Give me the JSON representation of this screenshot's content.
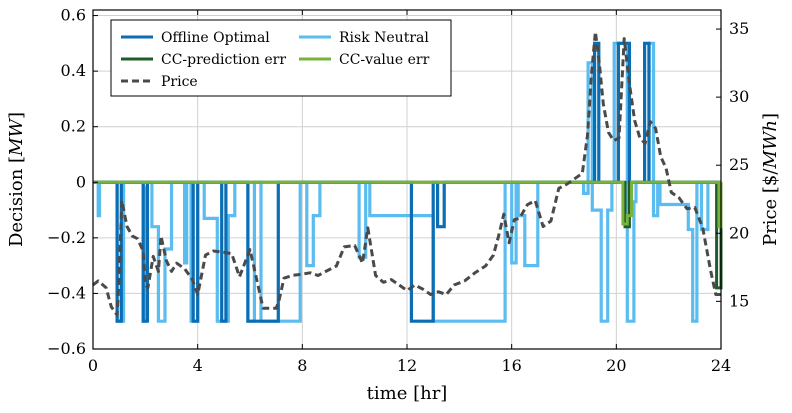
{
  "chart_data": {
    "type": "line",
    "xlabel": "time [hr]",
    "ylabel": "Decision [MW]",
    "y2label": "Price [$/MWh]",
    "xlim": [
      0,
      24
    ],
    "ylim": [
      -0.6,
      0.62
    ],
    "y2lim": [
      11.5,
      36.4
    ],
    "grid": true,
    "legend_position": "top-left",
    "x_ticks": [
      0,
      4,
      8,
      12,
      16,
      20,
      24
    ],
    "x_tick_labels": [
      "0",
      "4",
      "8",
      "12",
      "16",
      "20",
      "24"
    ],
    "y_ticks": [
      -0.6,
      -0.4,
      -0.2,
      0,
      0.2,
      0.4,
      0.6
    ],
    "y_tick_labels": [
      "−0.6",
      "−0.4",
      "−0.2",
      "0",
      "0.2",
      "0.4",
      "0.6"
    ],
    "y2_ticks": [
      15,
      20,
      25,
      30,
      35
    ],
    "y2_tick_labels": [
      "15",
      "20",
      "25",
      "30",
      "35"
    ],
    "series": [
      {
        "name": "Risk Neutral",
        "color": "#5bbcf0",
        "axis": "left",
        "style": "step",
        "x": [
          0,
          0.2,
          0.25,
          0.92,
          1.17,
          1.92,
          2.0,
          2.08,
          2.25,
          2.5,
          2.75,
          3.0,
          3.5,
          3.58,
          3.75,
          4.0,
          4.25,
          4.75,
          5.17,
          5.42,
          5.92,
          6.17,
          6.42,
          7.92,
          8.17,
          8.42,
          8.67,
          10.17,
          10.42,
          10.58,
          13.0,
          15.75,
          16.0,
          16.17,
          16.25,
          16.5,
          16.75,
          17.0,
          18.75,
          18.92,
          19.08,
          19.42,
          19.67,
          19.83,
          19.92,
          20.42,
          20.67,
          20.75,
          21.25,
          21.42,
          21.58,
          21.67,
          22.75,
          22.92,
          23.08,
          23.25,
          23.5,
          24
        ],
        "values": [
          0,
          -0.12,
          0,
          -0.5,
          0,
          -0.5,
          -0.02,
          0,
          -0.16,
          -0.5,
          -0.24,
          0,
          -0.29,
          0,
          -0.5,
          0,
          -0.13,
          -0.5,
          -0.12,
          0,
          -0.5,
          0,
          -0.5,
          0,
          -0.3,
          -0.12,
          0,
          -0.27,
          0,
          -0.12,
          -0.5,
          0,
          -0.29,
          0,
          -0.12,
          -0.3,
          -0.3,
          0,
          -0.04,
          0.43,
          -0.1,
          -0.5,
          -0.1,
          0,
          0.5,
          -0.5,
          -0.07,
          0,
          0.5,
          -0.12,
          0,
          -0.08,
          -0.17,
          -0.5,
          0,
          -0.17,
          0,
          0
        ]
      },
      {
        "name": "Offline Optimal",
        "color": "#0b6eb4",
        "axis": "left",
        "style": "step",
        "x": [
          0,
          0.92,
          1.08,
          1.92,
          2.08,
          3.83,
          4.0,
          4.92,
          5.08,
          5.92,
          7.08,
          7.17,
          12.17,
          13.0,
          13.17,
          13.42,
          19.17,
          19.33,
          20.08,
          20.5,
          21.08,
          21.25,
          24
        ],
        "values": [
          0,
          -0.5,
          0,
          -0.5,
          0,
          -0.5,
          0,
          -0.5,
          0,
          -0.5,
          0,
          0,
          -0.5,
          0,
          -0.16,
          0,
          0.5,
          0,
          0.5,
          0,
          0.5,
          0,
          0
        ]
      },
      {
        "name": "CC-prediction err",
        "color": "#1f5c2a",
        "axis": "left",
        "style": "step",
        "x": [
          0,
          20.33,
          20.5,
          23.83,
          24
        ],
        "values": [
          0,
          -0.16,
          0,
          -0.38,
          0
        ]
      },
      {
        "name": "CC-value err",
        "color": "#7ab33b",
        "axis": "left",
        "style": "step",
        "x": [
          0,
          20.25,
          20.42,
          20.58,
          23.92,
          24
        ],
        "values": [
          0,
          -0.15,
          -0.12,
          0,
          -0.16,
          0
        ]
      },
      {
        "name": "Price",
        "color": "#4a4a4a",
        "axis": "right",
        "style": "dashed",
        "x": [
          0,
          0.2,
          0.5,
          0.7,
          0.92,
          1.0,
          1.1,
          1.3,
          1.5,
          1.7,
          1.92,
          2.0,
          2.1,
          2.3,
          2.5,
          2.6,
          2.8,
          3.0,
          3.2,
          3.5,
          3.8,
          4.0,
          4.3,
          4.6,
          5.0,
          5.3,
          5.6,
          6.0,
          6.5,
          7.0,
          7.1,
          7.3,
          7.6,
          8.0,
          8.3,
          8.6,
          9.0,
          9.3,
          9.6,
          10.0,
          10.3,
          10.5,
          10.8,
          11.1,
          11.4,
          11.7,
          12.0,
          12.3,
          12.6,
          12.9,
          13.2,
          13.5,
          13.8,
          14.2,
          14.6,
          15.0,
          15.3,
          15.5,
          15.7,
          15.9,
          16.1,
          16.3,
          16.6,
          16.9,
          17.2,
          17.5,
          17.8,
          18.1,
          18.4,
          18.7,
          18.9,
          19.05,
          19.2,
          19.35,
          19.5,
          19.7,
          19.9,
          20.1,
          20.3,
          20.5,
          20.7,
          20.9,
          21.1,
          21.3,
          21.5,
          21.7,
          21.9,
          22.1,
          22.4,
          22.7,
          23.0,
          23.3,
          23.6,
          23.8,
          24.0
        ],
        "values": [
          16.2,
          16.5,
          16.0,
          14.6,
          14.0,
          17.0,
          22.4,
          20.5,
          19.8,
          19.6,
          18.7,
          16.2,
          16.0,
          18.3,
          17.2,
          19.8,
          18.0,
          17.2,
          17.8,
          17.4,
          16.6,
          15.5,
          18.4,
          18.7,
          18.6,
          18.5,
          16.8,
          18.8,
          14.5,
          14.5,
          15.0,
          16.7,
          16.9,
          17.0,
          17.1,
          16.9,
          17.3,
          17.6,
          19.0,
          19.1,
          17.8,
          20.4,
          16.9,
          16.4,
          16.6,
          16.2,
          15.8,
          16.2,
          15.9,
          15.5,
          15.7,
          15.5,
          16.2,
          16.5,
          17.1,
          17.6,
          18.4,
          19.8,
          21.4,
          19.3,
          21.0,
          21.1,
          22.1,
          22.4,
          20.5,
          20.9,
          23.3,
          23.6,
          24.0,
          24.4,
          27.2,
          31.7,
          34.8,
          32.5,
          29.5,
          27.4,
          26.8,
          27.0,
          34.3,
          31.0,
          28.3,
          27.0,
          26.6,
          28.2,
          27.7,
          25.6,
          24.8,
          23.0,
          22.6,
          21.8,
          21.9,
          20.4,
          17.3,
          15.5,
          15.5
        ]
      }
    ]
  }
}
